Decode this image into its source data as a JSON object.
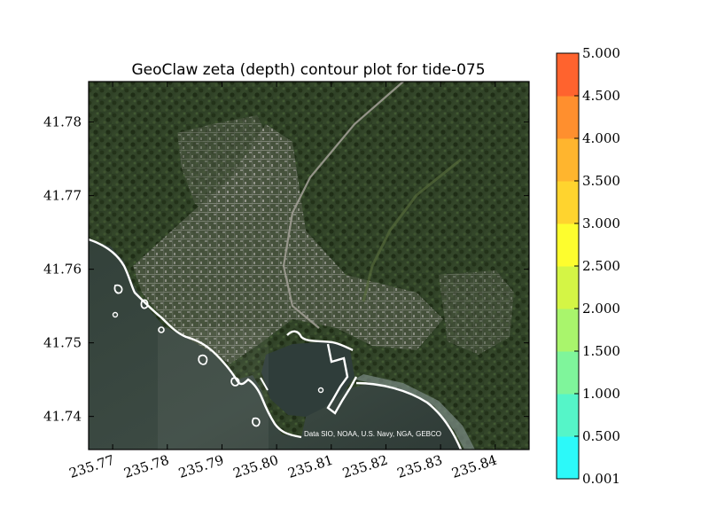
{
  "chart_data": {
    "type": "heatmap",
    "title": "GeoClaw zeta (depth) contour plot for tide-075",
    "xlabel": "",
    "ylabel": "",
    "xlim": [
      235.7656,
      235.8462
    ],
    "ylim": [
      41.7355,
      41.7855
    ],
    "x_ticks": [
      235.77,
      235.78,
      235.79,
      235.8,
      235.81,
      235.82,
      235.83,
      235.84
    ],
    "x_tick_labels": [
      "235.77",
      "235.78",
      "235.79",
      "235.80",
      "235.81",
      "235.82",
      "235.83",
      "235.84"
    ],
    "y_ticks": [
      41.74,
      41.75,
      41.76,
      41.77,
      41.78
    ],
    "y_tick_labels": [
      "41.74",
      "41.75",
      "41.76",
      "41.77",
      "41.78"
    ],
    "background_attribution": "Data SIO, NOAA, U.S. Navy, NGA, GEBCO",
    "contour_line_color": "#ffffff",
    "colorbar": {
      "boundaries": [
        0.001,
        0.5,
        1.0,
        1.5,
        2.0,
        2.5,
        3.0,
        3.5,
        4.0,
        4.5,
        5.0
      ],
      "labels": [
        "0.001",
        "0.500",
        "1.000",
        "1.500",
        "2.000",
        "2.500",
        "3.000",
        "3.500",
        "4.000",
        "4.500",
        "5.000"
      ],
      "colors": [
        "#2cf9f9",
        "#55f5c8",
        "#7ff59b",
        "#a9f56c",
        "#d4f545",
        "#fdfd2e",
        "#ffd42e",
        "#ffb52e",
        "#ff8f2e",
        "#ff632e",
        "#ff2e2e"
      ]
    }
  }
}
